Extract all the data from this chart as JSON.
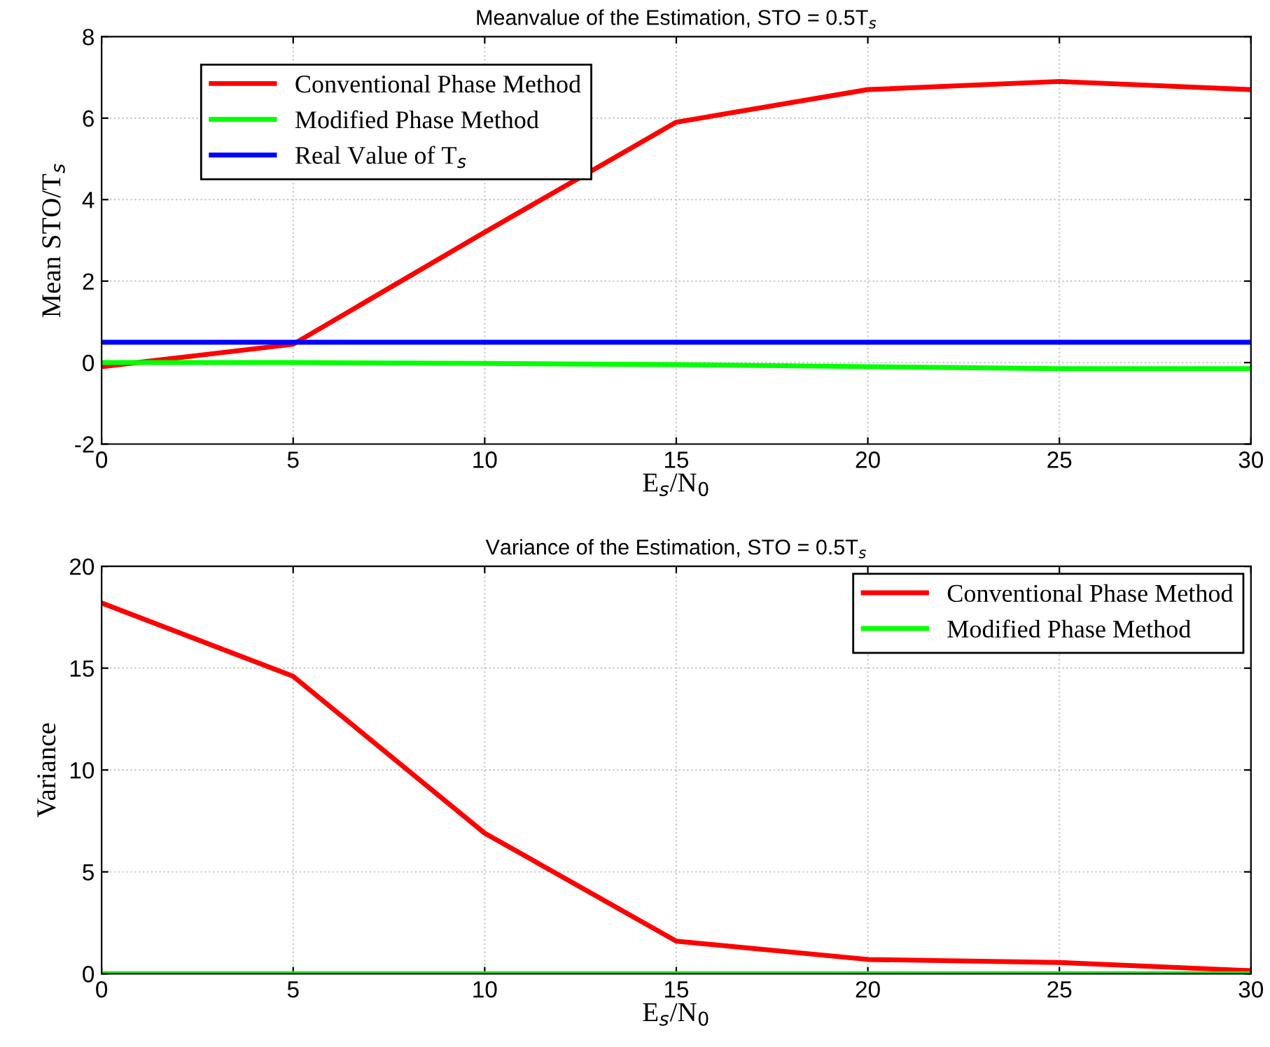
{
  "chart_data": [
    {
      "type": "line",
      "title": "Meanvalue of the Estimation, STO = 0.5T$_{s}$",
      "xlabel": "E$_{s}$/N$_{0}$",
      "ylabel": "Mean STO/T$_{s}$",
      "x": [
        0,
        5,
        10,
        15,
        20,
        25,
        30
      ],
      "series": [
        {
          "name": "Conventional Phase Method",
          "color": "#ff0000",
          "values": [
            -0.1,
            0.45,
            3.2,
            5.9,
            6.7,
            6.9,
            6.7
          ]
        },
        {
          "name": "Modified Phase Method",
          "color": "#00ff00",
          "values": [
            0,
            0,
            -0.02,
            -0.05,
            -0.1,
            -0.15,
            -0.15
          ]
        },
        {
          "name": "Real Value of T$_{s}$",
          "color": "#0000ff",
          "values": [
            0.5,
            0.5,
            0.5,
            0.5,
            0.5,
            0.5,
            0.5
          ]
        }
      ],
      "xlim": [
        0,
        30
      ],
      "xticks": [
        0,
        5,
        10,
        15,
        20,
        25,
        30
      ],
      "ylim": [
        -2,
        8
      ],
      "yticks": [
        -2,
        0,
        2,
        4,
        6,
        8
      ],
      "grid": true,
      "legend": "top left",
      "marker": "none",
      "line_style": "solid"
    },
    {
      "type": "line",
      "title": "Variance of the Estimation, STO = 0.5T$_{s}$",
      "xlabel": "E$_{s}$/N$_{0}$",
      "ylabel": "Variance",
      "x": [
        0,
        5,
        10,
        15,
        20,
        25,
        30
      ],
      "series": [
        {
          "name": "Conventional Phase Method",
          "color": "#ff0000",
          "values": [
            18.2,
            14.6,
            6.9,
            1.6,
            0.7,
            0.55,
            0.15
          ]
        },
        {
          "name": "Modified Phase Method",
          "color": "#00ff00",
          "values": [
            0,
            0,
            0,
            0,
            0,
            0,
            0
          ]
        }
      ],
      "xlim": [
        0,
        30
      ],
      "xticks": [
        0,
        5,
        10,
        15,
        20,
        25,
        30
      ],
      "ylim": [
        0,
        20
      ],
      "yticks": [
        0,
        5,
        10,
        15,
        20
      ],
      "grid": true,
      "legend": "top right",
      "marker": "none",
      "line_style": "solid"
    }
  ]
}
